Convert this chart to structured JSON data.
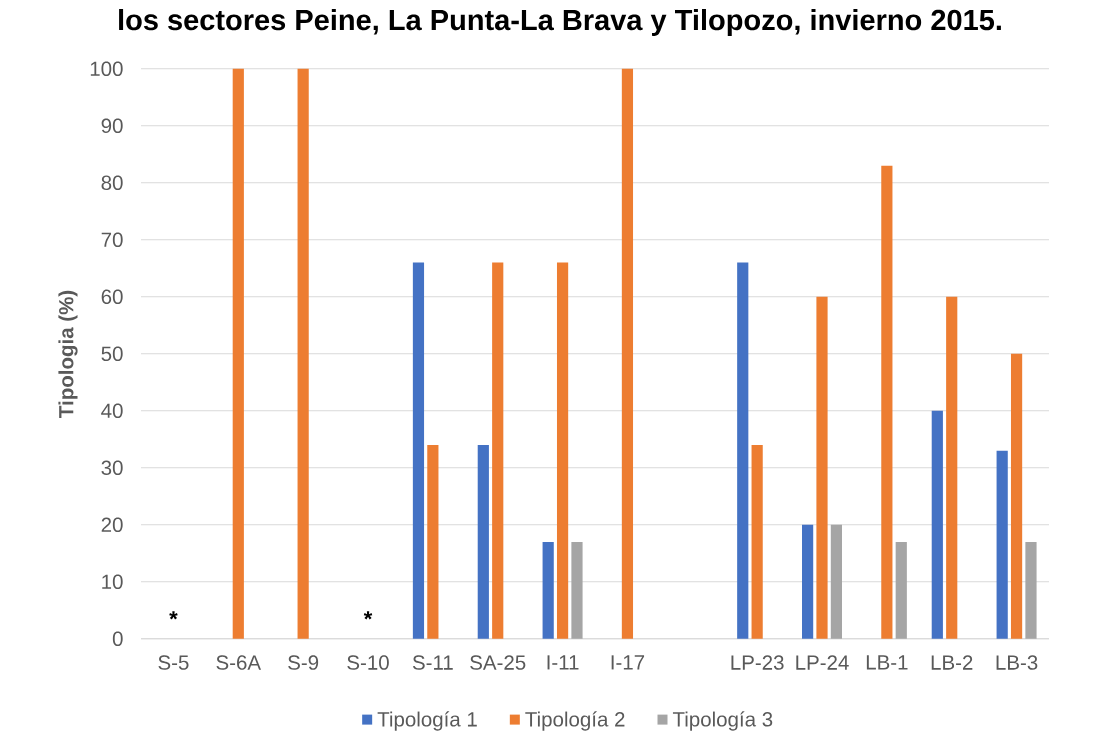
{
  "chart_data": {
    "type": "bar",
    "title": "los sectores Peine, La Punta-La Brava y Tilopozo, invierno 2015.",
    "ylabel": "Tipologia (%)",
    "categories": [
      "S-5",
      "S-6A",
      "S-9",
      "S-10",
      "S-11",
      "SA-25",
      "I-11",
      "I-17",
      null,
      "LP-23",
      "LP-24",
      "LB-1",
      "LB-2",
      "LB-3"
    ],
    "series": [
      {
        "name": "Tipología 1",
        "color": "#4472c4",
        "values": [
          null,
          null,
          null,
          null,
          66,
          34,
          17,
          null,
          null,
          66,
          20,
          null,
          40,
          33
        ]
      },
      {
        "name": "Tipología 2",
        "color": "#ed7d31",
        "values": [
          null,
          100,
          100,
          null,
          34,
          66,
          66,
          100,
          null,
          34,
          60,
          83,
          60,
          50
        ]
      },
      {
        "name": "Tipología 3",
        "color": "#a5a5a5",
        "values": [
          null,
          null,
          null,
          null,
          null,
          null,
          17,
          null,
          null,
          null,
          20,
          17,
          null,
          17
        ]
      }
    ],
    "ylim": [
      0,
      100
    ],
    "yticks": [
      0,
      10,
      20,
      30,
      40,
      50,
      60,
      70,
      80,
      90,
      100
    ],
    "grid": "y",
    "legend": "bottom",
    "annotations": [
      "*",
      "*"
    ]
  }
}
